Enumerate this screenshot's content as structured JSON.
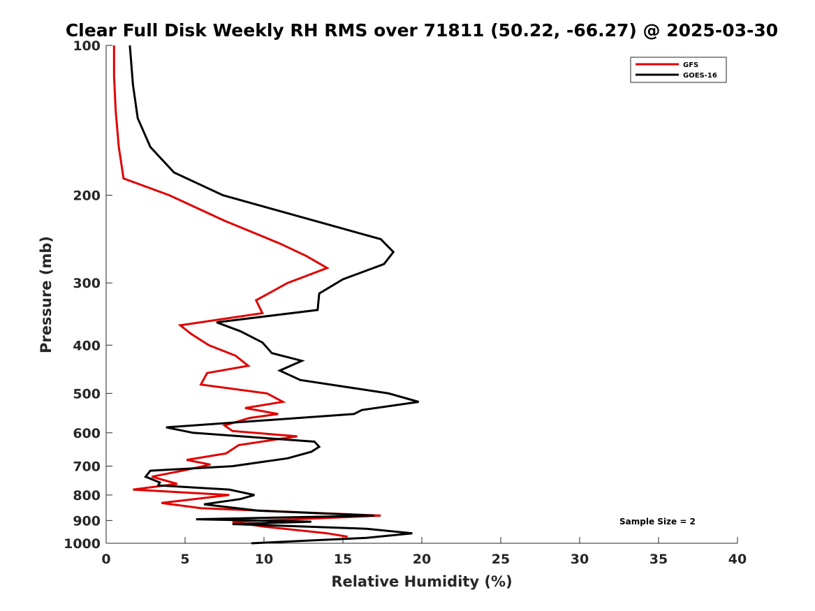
{
  "chart_data": {
    "type": "line",
    "title": "Clear Full Disk Weekly RH RMS over 71811 (50.22, -66.27) @ 2025-03-30",
    "xlabel": "Relative Humidity (%)",
    "ylabel": "Pressure (mb)",
    "xlim": [
      0,
      40
    ],
    "ylim": [
      100,
      1000
    ],
    "yscale": "log",
    "y_reversed": true,
    "xticks": [
      0,
      5,
      10,
      15,
      20,
      25,
      30,
      35,
      40
    ],
    "yticks": [
      100,
      200,
      300,
      400,
      500,
      600,
      700,
      800,
      900,
      1000
    ],
    "grid": false,
    "legend_position": "top-right",
    "annotation": "Sample Size = 2",
    "series": [
      {
        "name": "GFS",
        "color": "#e00000",
        "points": [
          [
            0.5,
            100
          ],
          [
            0.5,
            115
          ],
          [
            0.6,
            135
          ],
          [
            0.8,
            160
          ],
          [
            1.1,
            185
          ],
          [
            4.0,
            200
          ],
          [
            7.5,
            225
          ],
          [
            11.0,
            250
          ],
          [
            12.7,
            265
          ],
          [
            14.0,
            280
          ],
          [
            11.5,
            300
          ],
          [
            9.5,
            325
          ],
          [
            9.9,
            345
          ],
          [
            4.7,
            365
          ],
          [
            5.4,
            380
          ],
          [
            6.5,
            400
          ],
          [
            8.2,
            420
          ],
          [
            9.0,
            440
          ],
          [
            6.4,
            455
          ],
          [
            6.0,
            480
          ],
          [
            10.2,
            500
          ],
          [
            11.2,
            520
          ],
          [
            8.8,
            535
          ],
          [
            10.9,
            550
          ],
          [
            9.1,
            560
          ],
          [
            7.5,
            580
          ],
          [
            8.0,
            595
          ],
          [
            12.1,
            610
          ],
          [
            8.4,
            635
          ],
          [
            7.6,
            660
          ],
          [
            5.1,
            680
          ],
          [
            6.6,
            695
          ],
          [
            5.1,
            712
          ],
          [
            2.9,
            735
          ],
          [
            4.5,
            760
          ],
          [
            1.7,
            780
          ],
          [
            7.8,
            800
          ],
          [
            3.5,
            830
          ],
          [
            6.0,
            850
          ],
          [
            17.4,
            880
          ],
          [
            12.0,
            895
          ],
          [
            8.0,
            905
          ],
          [
            9.9,
            925
          ],
          [
            14.0,
            955
          ],
          [
            15.3,
            970
          ]
        ]
      },
      {
        "name": "GOES-16",
        "color": "#000000",
        "points": [
          [
            1.5,
            100
          ],
          [
            1.7,
            120
          ],
          [
            2.0,
            140
          ],
          [
            2.8,
            160
          ],
          [
            4.3,
            180
          ],
          [
            7.4,
            200
          ],
          [
            17.4,
            245
          ],
          [
            18.2,
            260
          ],
          [
            17.6,
            275
          ],
          [
            15.0,
            295
          ],
          [
            13.5,
            315
          ],
          [
            13.4,
            340
          ],
          [
            7.0,
            360
          ],
          [
            8.5,
            375
          ],
          [
            9.9,
            395
          ],
          [
            10.5,
            415
          ],
          [
            12.4,
            430
          ],
          [
            11.0,
            450
          ],
          [
            12.3,
            470
          ],
          [
            17.9,
            500
          ],
          [
            19.8,
            520
          ],
          [
            16.2,
            540
          ],
          [
            15.7,
            550
          ],
          [
            3.8,
            585
          ],
          [
            5.5,
            600
          ],
          [
            13.2,
            625
          ],
          [
            13.5,
            640
          ],
          [
            13.0,
            655
          ],
          [
            11.5,
            675
          ],
          [
            8.0,
            700
          ],
          [
            2.8,
            715
          ],
          [
            2.5,
            735
          ],
          [
            3.4,
            755
          ],
          [
            3.3,
            765
          ],
          [
            7.8,
            780
          ],
          [
            9.4,
            800
          ],
          [
            8.5,
            815
          ],
          [
            6.2,
            835
          ],
          [
            9.6,
            860
          ],
          [
            17.0,
            880
          ],
          [
            5.7,
            895
          ],
          [
            13.0,
            905
          ],
          [
            8.0,
            915
          ],
          [
            16.5,
            935
          ],
          [
            19.4,
            955
          ],
          [
            16.5,
            975
          ],
          [
            9.2,
            1000
          ]
        ]
      }
    ]
  }
}
